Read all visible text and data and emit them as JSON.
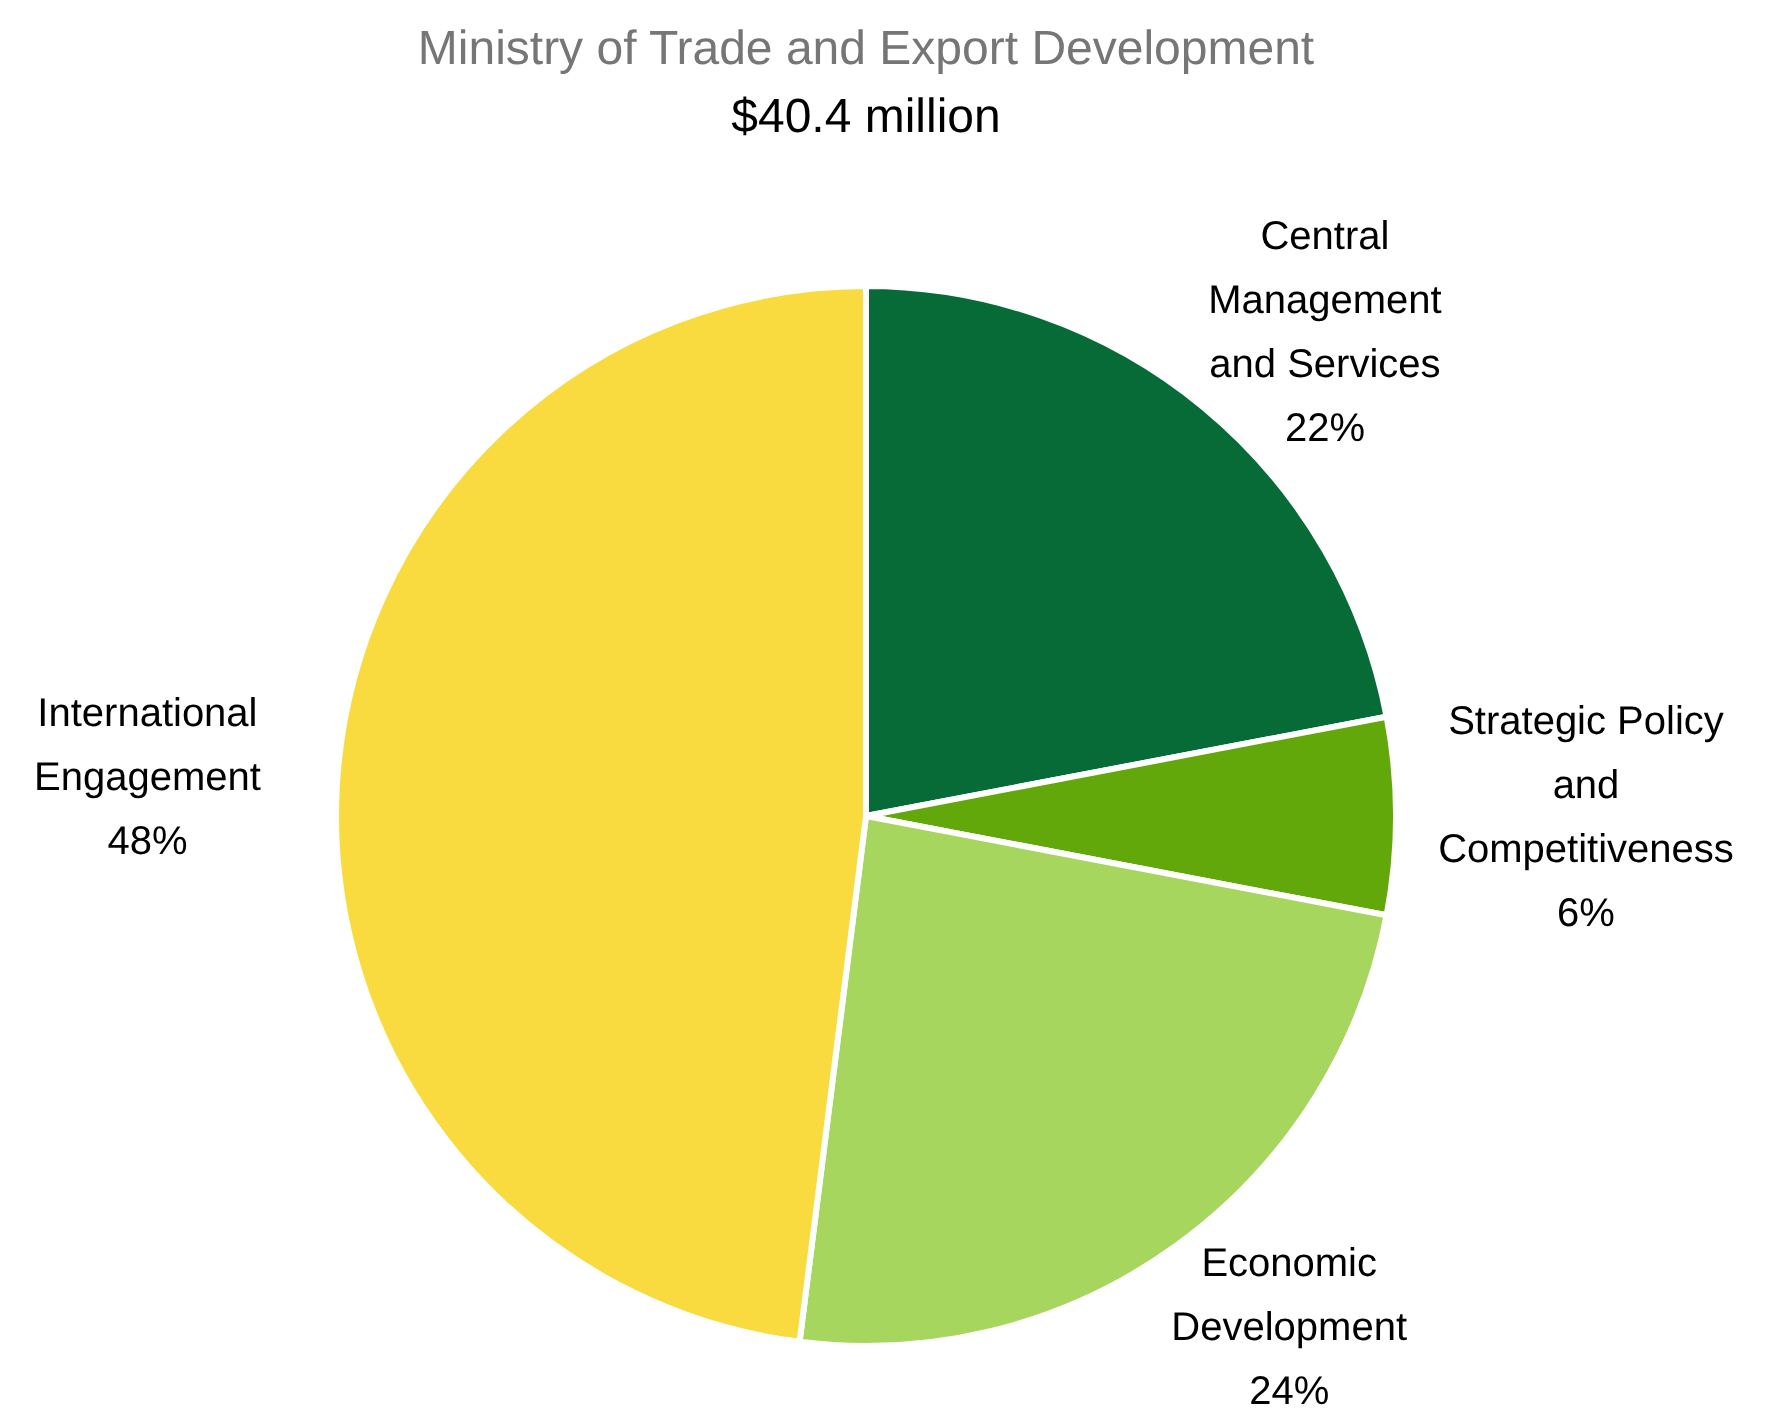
{
  "chart_data": {
    "type": "pie",
    "title": "Ministry of Trade and Export Development",
    "subtitle": "$40.4 million",
    "categories": [
      "Central Management and Services",
      "Strategic Policy and Competitiveness",
      "Economic Development",
      "International Engagement"
    ],
    "values": [
      22,
      6,
      24,
      48
    ],
    "colors": [
      "#066b37",
      "#62a80a",
      "#a6d65e",
      "#f9db40"
    ],
    "value_labels": [
      "22%",
      "6%",
      "24%",
      "48%"
    ]
  }
}
